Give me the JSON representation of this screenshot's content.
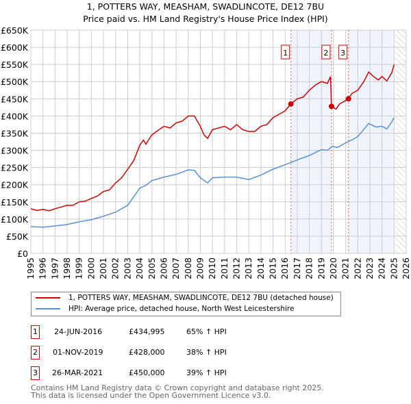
{
  "title": "1, POTTERS WAY, MEASHAM, SWADLINCOTE, DE12 7BU",
  "subtitle": "Price paid vs. HM Land Registry's House Price Index (HPI)",
  "chart_data": {
    "type": "line",
    "ylim": [
      0,
      650
    ],
    "xlim": [
      1995,
      2026
    ],
    "y_ticks": [
      "£0",
      "£50K",
      "£100K",
      "£150K",
      "£200K",
      "£250K",
      "£300K",
      "£350K",
      "£400K",
      "£450K",
      "£500K",
      "£550K",
      "£600K",
      "£650K"
    ],
    "x_ticks": [
      "1995",
      "1996",
      "1997",
      "1998",
      "1999",
      "2000",
      "2001",
      "2002",
      "2003",
      "2004",
      "2005",
      "2006",
      "2007",
      "2008",
      "2009",
      "2010",
      "2011",
      "2012",
      "2013",
      "2014",
      "2015",
      "2016",
      "2017",
      "2018",
      "2019",
      "2020",
      "2021",
      "2022",
      "2023",
      "2024",
      "2025",
      "2026"
    ],
    "grid": true,
    "series": [
      {
        "name": "1, POTTERS WAY, MEASHAM, SWADLINCOTE, DE12 7BU (detached house)",
        "color": "#cc0000",
        "points": [
          [
            1995,
            130
          ],
          [
            1995.5,
            125
          ],
          [
            1996,
            128
          ],
          [
            1996.5,
            124
          ],
          [
            1997,
            130
          ],
          [
            1997.5,
            135
          ],
          [
            1998,
            140
          ],
          [
            1998.5,
            140
          ],
          [
            1999,
            150
          ],
          [
            1999.5,
            152
          ],
          [
            2000,
            160
          ],
          [
            2000.5,
            167
          ],
          [
            2001,
            180
          ],
          [
            2001.5,
            185
          ],
          [
            2002,
            205
          ],
          [
            2002.5,
            220
          ],
          [
            2003,
            245
          ],
          [
            2003.5,
            270
          ],
          [
            2004,
            315
          ],
          [
            2004.3,
            330
          ],
          [
            2004.5,
            318
          ],
          [
            2005,
            345
          ],
          [
            2005.5,
            358
          ],
          [
            2006,
            370
          ],
          [
            2006.5,
            365
          ],
          [
            2007,
            380
          ],
          [
            2007.5,
            385
          ],
          [
            2008,
            400
          ],
          [
            2008.5,
            400
          ],
          [
            2009,
            370
          ],
          [
            2009.3,
            345
          ],
          [
            2009.6,
            335
          ],
          [
            2010,
            360
          ],
          [
            2010.5,
            365
          ],
          [
            2011,
            370
          ],
          [
            2011.5,
            360
          ],
          [
            2012,
            375
          ],
          [
            2012.5,
            360
          ],
          [
            2013,
            355
          ],
          [
            2013.5,
            355
          ],
          [
            2014,
            370
          ],
          [
            2014.5,
            375
          ],
          [
            2015,
            395
          ],
          [
            2015.5,
            405
          ],
          [
            2016,
            415
          ],
          [
            2016.48,
            435
          ],
          [
            2017,
            450
          ],
          [
            2017.5,
            455
          ],
          [
            2018,
            475
          ],
          [
            2018.5,
            490
          ],
          [
            2019,
            500
          ],
          [
            2019.5,
            495
          ],
          [
            2019.75,
            515
          ],
          [
            2019.83,
            428
          ],
          [
            2020.2,
            420
          ],
          [
            2020.5,
            435
          ],
          [
            2021,
            445
          ],
          [
            2021.23,
            450
          ],
          [
            2021.5,
            465
          ],
          [
            2022,
            475
          ],
          [
            2022.5,
            500
          ],
          [
            2022.9,
            528
          ],
          [
            2023.3,
            515
          ],
          [
            2023.7,
            505
          ],
          [
            2024,
            515
          ],
          [
            2024.4,
            502
          ],
          [
            2024.8,
            525
          ],
          [
            2025,
            550
          ]
        ]
      },
      {
        "name": "HPI: Average price, detached house, North West Leicestershire",
        "color": "#5b8fd4",
        "points": [
          [
            1995,
            78
          ],
          [
            1996,
            76
          ],
          [
            1997,
            80
          ],
          [
            1998,
            84
          ],
          [
            1999,
            92
          ],
          [
            2000,
            98
          ],
          [
            2001,
            108
          ],
          [
            2002,
            120
          ],
          [
            2003,
            140
          ],
          [
            2004,
            190
          ],
          [
            2004.5,
            198
          ],
          [
            2005,
            212
          ],
          [
            2006,
            222
          ],
          [
            2007,
            230
          ],
          [
            2008,
            243
          ],
          [
            2008.5,
            242
          ],
          [
            2009,
            220
          ],
          [
            2009.6,
            205
          ],
          [
            2010,
            220
          ],
          [
            2011,
            222
          ],
          [
            2012,
            222
          ],
          [
            2013,
            215
          ],
          [
            2014,
            228
          ],
          [
            2015,
            245
          ],
          [
            2016,
            258
          ],
          [
            2016.5,
            265
          ],
          [
            2017,
            272
          ],
          [
            2018,
            285
          ],
          [
            2019,
            302
          ],
          [
            2019.5,
            300
          ],
          [
            2019.9,
            312
          ],
          [
            2020.3,
            308
          ],
          [
            2021,
            322
          ],
          [
            2021.5,
            330
          ],
          [
            2022,
            340
          ],
          [
            2022.9,
            378
          ],
          [
            2023.5,
            368
          ],
          [
            2024,
            370
          ],
          [
            2024.4,
            362
          ],
          [
            2024.8,
            382
          ],
          [
            2025,
            395
          ]
        ]
      }
    ],
    "sales": [
      {
        "label": "1",
        "x": 2016.48,
        "y": 434.995
      },
      {
        "label": "2",
        "x": 2019.83,
        "y": 428
      },
      {
        "label": "3",
        "x": 2021.23,
        "y": 450
      }
    ]
  },
  "legend": [
    "1, POTTERS WAY, MEASHAM, SWADLINCOTE, DE12 7BU (detached house)",
    "HPI: Average price, detached house, North West Leicestershire"
  ],
  "table": [
    {
      "n": "1",
      "date": "24-JUN-2016",
      "price": "£434,995",
      "hpi": "65% ↑ HPI"
    },
    {
      "n": "2",
      "date": "01-NOV-2019",
      "price": "£428,000",
      "hpi": "38% ↑ HPI"
    },
    {
      "n": "3",
      "date": "26-MAR-2021",
      "price": "£450,000",
      "hpi": "39% ↑ HPI"
    }
  ],
  "footer": [
    "Contains HM Land Registry data © Crown copyright and database right 2025.",
    "This data is licensed under the Open Government Licence v3.0."
  ]
}
